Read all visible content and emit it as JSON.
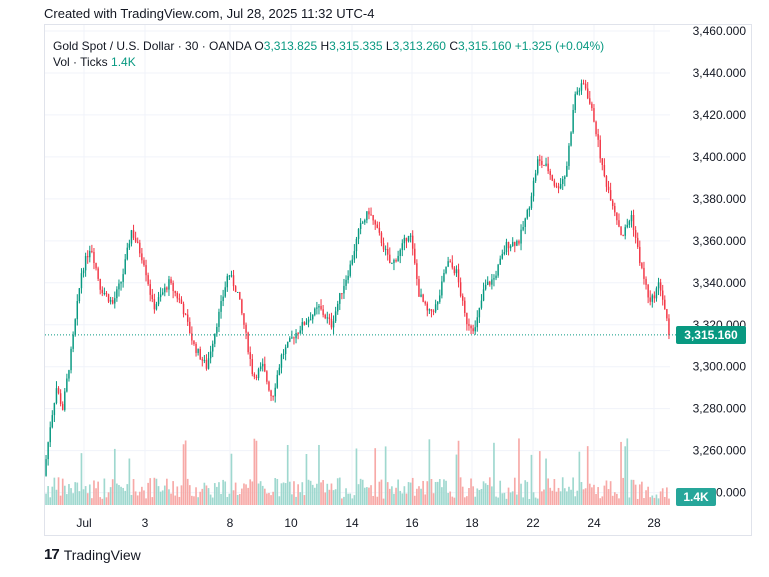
{
  "header": {
    "created_text": "Created with TradingView.com, Jul 28, 2025 11:32 UTC-4"
  },
  "legend": {
    "symbol": "Gold Spot / U.S. Dollar · 30 · OANDA",
    "o_label": "O",
    "o_value": "3,313.825",
    "h_label": "H",
    "h_value": "3,315.335",
    "l_label": "L",
    "l_value": "3,313.260",
    "c_label": "C",
    "c_value": "3,315.160",
    "change": "+1.325 (+0.04%)",
    "vol_label": "Vol · Ticks",
    "vol_value": "1.4K"
  },
  "last_price_tag": "3,315.160",
  "last_volume_tag": "1.4K",
  "footer": {
    "brand": "TradingView",
    "logo_mark": "17"
  },
  "colors": {
    "up": "#089981",
    "down": "#f23645",
    "vol_up": "#9fd8cf",
    "vol_down": "#f7a9a7",
    "grid": "#f0f3fa"
  },
  "chart_data": {
    "type": "candlestick",
    "y_ticks": [
      "3,460.000",
      "3,440.000",
      "3,420.000",
      "3,400.000",
      "3,380.000",
      "3,360.000",
      "3,340.000",
      "3,320.000",
      "3,300.000",
      "3,280.000",
      "3,260.000",
      "3,240.000"
    ],
    "y_values": [
      3460,
      3440,
      3420,
      3400,
      3380,
      3360,
      3340,
      3320,
      3300,
      3280,
      3260,
      3240
    ],
    "ylim": [
      3236,
      3460
    ],
    "x_tick_labels": [
      "Jul",
      "3",
      "8",
      "10",
      "14",
      "16",
      "18",
      "22",
      "24",
      "28"
    ],
    "last_price": 3315.16,
    "price_path": [
      [
        0,
        3248
      ],
      [
        0.01,
        3272
      ],
      [
        0.02,
        3290
      ],
      [
        0.03,
        3280
      ],
      [
        0.045,
        3310
      ],
      [
        0.06,
        3345
      ],
      [
        0.075,
        3358
      ],
      [
        0.09,
        3338
      ],
      [
        0.11,
        3330
      ],
      [
        0.125,
        3342
      ],
      [
        0.14,
        3365
      ],
      [
        0.16,
        3350
      ],
      [
        0.175,
        3328
      ],
      [
        0.2,
        3340
      ],
      [
        0.22,
        3330
      ],
      [
        0.24,
        3310
      ],
      [
        0.26,
        3300
      ],
      [
        0.28,
        3325
      ],
      [
        0.295,
        3345
      ],
      [
        0.31,
        3335
      ],
      [
        0.32,
        3320
      ],
      [
        0.335,
        3295
      ],
      [
        0.35,
        3300
      ],
      [
        0.365,
        3285
      ],
      [
        0.38,
        3305
      ],
      [
        0.4,
        3315
      ],
      [
        0.42,
        3322
      ],
      [
        0.44,
        3328
      ],
      [
        0.46,
        3320
      ],
      [
        0.475,
        3335
      ],
      [
        0.49,
        3348
      ],
      [
        0.505,
        3366
      ],
      [
        0.52,
        3374
      ],
      [
        0.54,
        3360
      ],
      [
        0.555,
        3348
      ],
      [
        0.57,
        3355
      ],
      [
        0.585,
        3365
      ],
      [
        0.6,
        3335
      ],
      [
        0.615,
        3325
      ],
      [
        0.63,
        3330
      ],
      [
        0.645,
        3350
      ],
      [
        0.66,
        3345
      ],
      [
        0.675,
        3322
      ],
      [
        0.69,
        3318
      ],
      [
        0.705,
        3338
      ],
      [
        0.72,
        3342
      ],
      [
        0.74,
        3358
      ],
      [
        0.76,
        3360
      ],
      [
        0.775,
        3375
      ],
      [
        0.79,
        3398
      ],
      [
        0.805,
        3395
      ],
      [
        0.82,
        3385
      ],
      [
        0.835,
        3392
      ],
      [
        0.85,
        3430
      ],
      [
        0.865,
        3435
      ],
      [
        0.88,
        3418
      ],
      [
        0.895,
        3392
      ],
      [
        0.91,
        3378
      ],
      [
        0.925,
        3362
      ],
      [
        0.94,
        3372
      ],
      [
        0.955,
        3348
      ],
      [
        0.97,
        3330
      ],
      [
        0.985,
        3340
      ],
      [
        0.995,
        3325
      ],
      [
        1,
        3315
      ]
    ]
  }
}
